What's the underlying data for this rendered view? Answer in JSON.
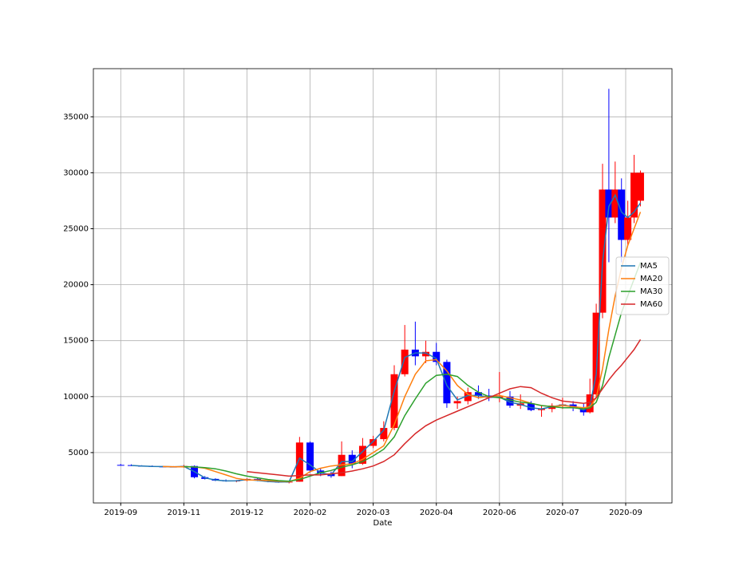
{
  "chart_data": {
    "type": "candlestick",
    "xlabel": "Date",
    "x": [
      0,
      5,
      10,
      15,
      20,
      25,
      30,
      35,
      40,
      45,
      50,
      55,
      60,
      65,
      70,
      75,
      80,
      85,
      90,
      95,
      100,
      105,
      110,
      115,
      120,
      125,
      130,
      135,
      140,
      145,
      150,
      155,
      160,
      165,
      170,
      175,
      180,
      185,
      190,
      195,
      200,
      205,
      210,
      215,
      220,
      223,
      226,
      229,
      232,
      235,
      238,
      241,
      244,
      247
    ],
    "open": [
      3900,
      3880,
      3820,
      3790,
      3760,
      3740,
      3720,
      3800,
      2800,
      2650,
      2500,
      2450,
      2500,
      2650,
      2500,
      2400,
      2350,
      2400,
      5900,
      3400,
      3100,
      2900,
      4800,
      4000,
      5600,
      6200,
      7200,
      12000,
      14200,
      13600,
      14000,
      13100,
      9400,
      9600,
      10400,
      10100,
      9900,
      10000,
      9200,
      9400,
      8800,
      8900,
      9200,
      9300,
      9000,
      8600,
      10200,
      17500,
      28500,
      26000,
      28500,
      24000,
      26000,
      27500
    ],
    "high": [
      3980,
      3950,
      3870,
      3850,
      3800,
      3790,
      3900,
      3850,
      2900,
      2700,
      2600,
      2550,
      2700,
      2700,
      2550,
      2500,
      2500,
      6400,
      6000,
      3600,
      3300,
      6000,
      5200,
      6300,
      6500,
      7800,
      12800,
      16400,
      16700,
      15000,
      14800,
      13300,
      10000,
      10800,
      11000,
      10700,
      12200,
      10500,
      10200,
      9600,
      9200,
      9400,
      9900,
      9600,
      9400,
      11600,
      18300,
      30800,
      37500,
      31000,
      29500,
      27500,
      31600,
      30200
    ],
    "low": [
      3850,
      3800,
      3750,
      3730,
      3700,
      3680,
      3650,
      2700,
      2600,
      2450,
      2400,
      2350,
      2450,
      2450,
      2350,
      2300,
      2250,
      2400,
      3200,
      2900,
      2750,
      2900,
      3600,
      3900,
      5400,
      6000,
      7000,
      11800,
      12800,
      13000,
      12800,
      9000,
      8900,
      9300,
      9800,
      9600,
      9500,
      9000,
      8900,
      8700,
      8200,
      8600,
      8900,
      8700,
      8300,
      8500,
      10000,
      17000,
      22000,
      25500,
      22000,
      23500,
      25500,
      27000
    ],
    "close": [
      3880,
      3820,
      3790,
      3760,
      3740,
      3720,
      3800,
      2800,
      2650,
      2500,
      2450,
      2500,
      2650,
      2500,
      2400,
      2350,
      2400,
      5900,
      3400,
      3100,
      2900,
      4800,
      4000,
      5600,
      6200,
      7200,
      12000,
      14200,
      13600,
      14000,
      13100,
      9400,
      9600,
      10400,
      10100,
      9900,
      10000,
      9200,
      9400,
      8800,
      8900,
      9200,
      9300,
      9000,
      8600,
      10200,
      17500,
      28500,
      26000,
      28500,
      24000,
      26000,
      30000,
      30000
    ],
    "up_color": "#ff0000",
    "down_color": "#0000ff",
    "series": [
      {
        "name": "MA5",
        "color": "#1f77b4",
        "values": [
          null,
          3850,
          3800,
          3770,
          3750,
          3730,
          3760,
          3300,
          2750,
          2550,
          2470,
          2480,
          2580,
          2520,
          2420,
          2370,
          2380,
          4500,
          3900,
          3200,
          3000,
          4200,
          4200,
          5100,
          6000,
          7000,
          10500,
          13500,
          13900,
          13900,
          13400,
          11000,
          9700,
          10100,
          10100,
          9950,
          9950,
          9500,
          9300,
          9000,
          8900,
          9100,
          9250,
          9100,
          8800,
          9200,
          12000,
          22000,
          27000,
          28000,
          26500,
          26000,
          26500,
          27300
        ]
      },
      {
        "name": "MA20",
        "color": "#ff7f0e",
        "values": [
          null,
          null,
          null,
          null,
          3750,
          3740,
          3730,
          3720,
          3600,
          3300,
          3000,
          2700,
          2550,
          2550,
          2500,
          2450,
          2420,
          2700,
          3300,
          3600,
          3800,
          3900,
          4000,
          4400,
          5000,
          5600,
          7500,
          10000,
          12000,
          13200,
          13300,
          12300,
          11000,
          10200,
          9900,
          10000,
          10100,
          9900,
          9700,
          9400,
          9200,
          9100,
          9200,
          9100,
          9000,
          9100,
          9900,
          12500,
          16000,
          19000,
          21500,
          23500,
          25000,
          26500
        ]
      },
      {
        "name": "MA30",
        "color": "#2ca02c",
        "values": [
          null,
          null,
          null,
          null,
          null,
          null,
          3750,
          3720,
          3650,
          3550,
          3350,
          3100,
          2900,
          2750,
          2600,
          2500,
          2450,
          2600,
          2900,
          3200,
          3400,
          3700,
          3900,
          4200,
          4700,
          5300,
          6400,
          8300,
          9800,
          11200,
          11900,
          12000,
          11800,
          11000,
          10400,
          10000,
          9900,
          9700,
          9500,
          9400,
          9200,
          9100,
          9000,
          9000,
          8900,
          9000,
          9500,
          11000,
          13500,
          15500,
          17500,
          19000,
          20500,
          22000
        ]
      },
      {
        "name": "MA60",
        "color": "#d62728",
        "values": [
          null,
          null,
          null,
          null,
          null,
          null,
          null,
          null,
          null,
          null,
          null,
          null,
          3300,
          3200,
          3100,
          3000,
          2900,
          2950,
          3000,
          3000,
          3100,
          3200,
          3350,
          3550,
          3800,
          4200,
          4800,
          5800,
          6700,
          7400,
          7900,
          8300,
          8700,
          9100,
          9500,
          9900,
          10300,
          10700,
          10900,
          10800,
          10300,
          9900,
          9600,
          9500,
          9400,
          9500,
          9900,
          10700,
          11500,
          12200,
          12800,
          13500,
          14200,
          15100
        ]
      }
    ],
    "xlim": [
      -13,
      262
    ],
    "ylim": [
      500,
      39300
    ],
    "xticks": [
      {
        "value": 0,
        "label": "2019-09"
      },
      {
        "value": 30,
        "label": "2019-11"
      },
      {
        "value": 60,
        "label": "2019-12"
      },
      {
        "value": 90,
        "label": "2020-02"
      },
      {
        "value": 120,
        "label": "2020-03"
      },
      {
        "value": 150,
        "label": "2020-04"
      },
      {
        "value": 180,
        "label": "2020-06"
      },
      {
        "value": 210,
        "label": "2020-07"
      },
      {
        "value": 240,
        "label": "2020-09"
      }
    ],
    "yticks": [
      5000,
      10000,
      15000,
      20000,
      25000,
      30000,
      35000
    ],
    "grid": true,
    "legend": "center right"
  }
}
